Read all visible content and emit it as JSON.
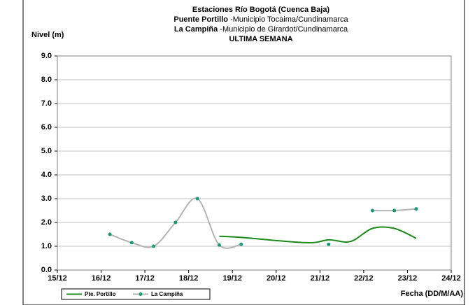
{
  "chart_data": {
    "type": "line",
    "title": "Estaciones Río Bogotá (Cuenca Baja)",
    "subtitle_1_bold": "Puente Portillo",
    "subtitle_1_rest": "-Municipio Tocaima/Cundinamarca",
    "subtitle_2_bold": "La Campiña",
    "subtitle_2_rest": "-Municipio de Girardot/Cundinamarca",
    "subtitle_3": "ULTIMA SEMANA",
    "y_label": "Nivel (m)",
    "x_label": "Fecha (DD/M/AA)",
    "x": [
      16.2,
      16.7,
      17.2,
      17.7,
      18.2,
      18.7,
      19.2,
      20.7,
      21.2,
      21.7,
      22.2,
      22.7,
      23.2
    ],
    "series": [
      {
        "name": "Pte. Portillo",
        "color": "#1a8a1a",
        "markers": false,
        "values": [
          null,
          null,
          null,
          null,
          null,
          1.42,
          1.37,
          1.15,
          1.27,
          1.2,
          1.75,
          1.75,
          1.33
        ]
      },
      {
        "name": "La Campiña",
        "color": "#b4b4b4",
        "marker_color": "#1a9a7a",
        "markers": true,
        "values": [
          1.5,
          1.15,
          1.0,
          2.0,
          3.0,
          1.05,
          1.08,
          null,
          1.08,
          null,
          2.5,
          2.5,
          2.57
        ]
      }
    ],
    "xlim": [
      15,
      24
    ],
    "xticks": [
      {
        "value": 15,
        "label": "15/12"
      },
      {
        "value": 16,
        "label": "16/12"
      },
      {
        "value": 17,
        "label": "17/12"
      },
      {
        "value": 18,
        "label": "18/12"
      },
      {
        "value": 19,
        "label": "19/12"
      },
      {
        "value": 20,
        "label": "20/12"
      },
      {
        "value": 21,
        "label": "21/12"
      },
      {
        "value": 22,
        "label": "22/12"
      },
      {
        "value": 23,
        "label": "23/12"
      },
      {
        "value": 24,
        "label": "24/12"
      }
    ],
    "ylim": [
      0,
      9
    ],
    "yticks": [
      {
        "value": 0,
        "label": "0.0"
      },
      {
        "value": 1,
        "label": "1.0"
      },
      {
        "value": 2,
        "label": "2.0"
      },
      {
        "value": 3,
        "label": "3.0"
      },
      {
        "value": 4,
        "label": "4.0"
      },
      {
        "value": 5,
        "label": "5.0"
      },
      {
        "value": 6,
        "label": "6.0"
      },
      {
        "value": 7,
        "label": "7.0"
      },
      {
        "value": 8,
        "label": "8.0"
      },
      {
        "value": 9,
        "label": "9.0"
      }
    ],
    "grid": true,
    "legend": "bottom-left"
  }
}
